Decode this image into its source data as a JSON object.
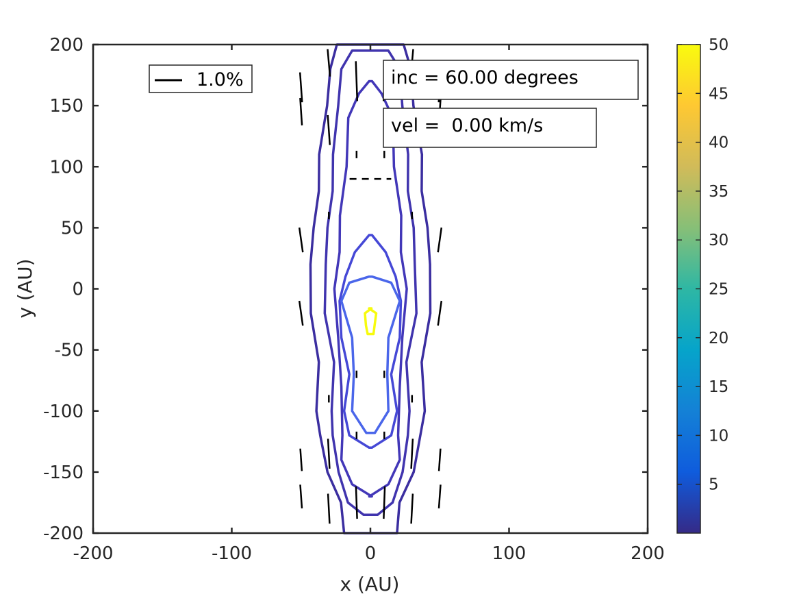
{
  "chart_data": {
    "type": "contour",
    "title": "",
    "xlabel": "x (AU)",
    "ylabel": "y (AU)",
    "xlim": [
      -200,
      200
    ],
    "ylim": [
      -200,
      200
    ],
    "xticks": [
      -200,
      -100,
      0,
      100,
      200
    ],
    "yticks": [
      -200,
      -150,
      -100,
      -50,
      0,
      50,
      100,
      150,
      200
    ],
    "xtick_labels": [
      "-200",
      "-100",
      "0",
      "100",
      "200"
    ],
    "ytick_labels": [
      "-200",
      "-150",
      "-100",
      "-50",
      "0",
      "50",
      "100",
      "150",
      "200"
    ],
    "colorbar": {
      "min": 0,
      "max": 50,
      "ticks": [
        5,
        10,
        15,
        20,
        25,
        30,
        35,
        40,
        45,
        50
      ],
      "tick_labels": [
        "5",
        "10",
        "15",
        "20",
        "25",
        "30",
        "35",
        "40",
        "45",
        "50"
      ],
      "colormap": "parula",
      "stops": [
        "#352a87",
        "#0f5cdd",
        "#1481d6",
        "#06a4ca",
        "#2eb7a4",
        "#87bf77",
        "#d1bb59",
        "#fec832",
        "#f9fb0e"
      ]
    },
    "legend": {
      "entries": [
        "1.0%"
      ],
      "placement": "top-left"
    },
    "annotations": [
      "inc = 60.00 degrees",
      "vel =  0.00 km/s"
    ],
    "contours": [
      {
        "level": 1,
        "color": "#3b2ea0",
        "half_widths": [
          [
            -200,
            18
          ],
          [
            -175,
            22
          ],
          [
            -150,
            30
          ],
          [
            -120,
            37
          ],
          [
            -100,
            38
          ],
          [
            -60,
            38
          ],
          [
            -20,
            42
          ],
          [
            20,
            44
          ],
          [
            50,
            40
          ],
          [
            80,
            38
          ],
          [
            110,
            36
          ],
          [
            150,
            32
          ],
          [
            180,
            28
          ],
          [
            200,
            25
          ]
        ]
      },
      {
        "level": 2,
        "color": "#4034ae",
        "half_widths": [
          [
            -185,
            4
          ],
          [
            -175,
            17
          ],
          [
            -150,
            22
          ],
          [
            -120,
            28
          ],
          [
            -100,
            27
          ],
          [
            -60,
            27
          ],
          [
            -20,
            32
          ],
          [
            20,
            33
          ],
          [
            50,
            30
          ],
          [
            80,
            28
          ],
          [
            110,
            26
          ],
          [
            150,
            24
          ],
          [
            180,
            20
          ],
          [
            195,
            14
          ]
        ]
      },
      {
        "level": 3,
        "color": "#4237b8",
        "half_widths": [
          [
            -170,
            -2
          ],
          [
            -160,
            14
          ],
          [
            -140,
            20
          ],
          [
            -120,
            21
          ],
          [
            -80,
            20
          ],
          [
            -40,
            24
          ],
          [
            0,
            25
          ],
          [
            30,
            23
          ],
          [
            60,
            21
          ],
          [
            100,
            18
          ],
          [
            140,
            15
          ],
          [
            160,
            9
          ],
          [
            170,
            0
          ]
        ]
      },
      {
        "level": 6,
        "color": "#4548d6",
        "half_widths": [
          [
            -130,
            0
          ],
          [
            -120,
            16
          ],
          [
            -100,
            18
          ],
          [
            -70,
            16
          ],
          [
            -40,
            20
          ],
          [
            -10,
            23
          ],
          [
            10,
            17
          ],
          [
            30,
            12
          ],
          [
            44,
            0
          ]
        ]
      },
      {
        "level": 10,
        "color": "#4a66ea",
        "half_widths": [
          [
            -118,
            2
          ],
          [
            -100,
            14
          ],
          [
            -70,
            11
          ],
          [
            -40,
            14
          ],
          [
            -10,
            20
          ],
          [
            5,
            16
          ],
          [
            10,
            0
          ]
        ]
      },
      {
        "level": 50,
        "color": "#f7fb0d",
        "half_widths": [
          [
            -37,
            1
          ],
          [
            -30,
            4
          ],
          [
            -20,
            3
          ],
          [
            -16,
            0
          ]
        ]
      }
    ],
    "contour_x_offsets": [
      0,
      0,
      0,
      0,
      0,
      0
    ],
    "polarization_vectors": {
      "unit": "1.0%",
      "length_scale_au": 18,
      "columns_x": [
        -50,
        -30,
        -10,
        10,
        30,
        50
      ],
      "segments": [
        [
          -50,
          -170,
          4,
          0.95
        ],
        [
          -50,
          -140,
          4,
          0.9
        ],
        [
          -50,
          -20,
          8,
          1
        ],
        [
          -50,
          40,
          8,
          1
        ],
        [
          -50,
          145,
          4,
          1.1
        ],
        [
          -50,
          165,
          4,
          1.2
        ],
        [
          -30,
          -180,
          3,
          1.2
        ],
        [
          -30,
          -135,
          3,
          1.2
        ],
        [
          -30,
          -90,
          0,
          0.3
        ],
        [
          -30,
          60,
          0,
          0.3
        ],
        [
          -30,
          130,
          4,
          1.2
        ],
        [
          -30,
          185,
          5,
          1.1
        ],
        [
          -10,
          -175,
          2,
          1.3
        ],
        [
          -10,
          -120,
          0,
          0.3
        ],
        [
          -10,
          -70,
          0,
          0.3
        ],
        [
          -10,
          110,
          0,
          0.3
        ],
        [
          -10,
          170,
          2,
          1.6
        ],
        [
          10,
          -175,
          -2,
          1.3
        ],
        [
          10,
          -120,
          0,
          0.3
        ],
        [
          10,
          -70,
          0,
          0.3
        ],
        [
          10,
          110,
          0,
          0.3
        ],
        [
          10,
          170,
          -2,
          1.6
        ],
        [
          30,
          -180,
          -3,
          1.2
        ],
        [
          30,
          -135,
          -3,
          1.2
        ],
        [
          30,
          -90,
          0,
          0.3
        ],
        [
          30,
          60,
          0,
          0.3
        ],
        [
          30,
          130,
          -4,
          1.2
        ],
        [
          30,
          185,
          -5,
          1.1
        ],
        [
          50,
          -170,
          -4,
          0.95
        ],
        [
          50,
          -140,
          -4,
          0.9
        ],
        [
          50,
          -20,
          -8,
          1
        ],
        [
          50,
          40,
          -8,
          1
        ],
        [
          50,
          145,
          -4,
          1.1
        ],
        [
          50,
          165,
          -4,
          1.2
        ]
      ],
      "horizontal_bar": [
        -15,
        90,
        15,
        90
      ]
    }
  }
}
